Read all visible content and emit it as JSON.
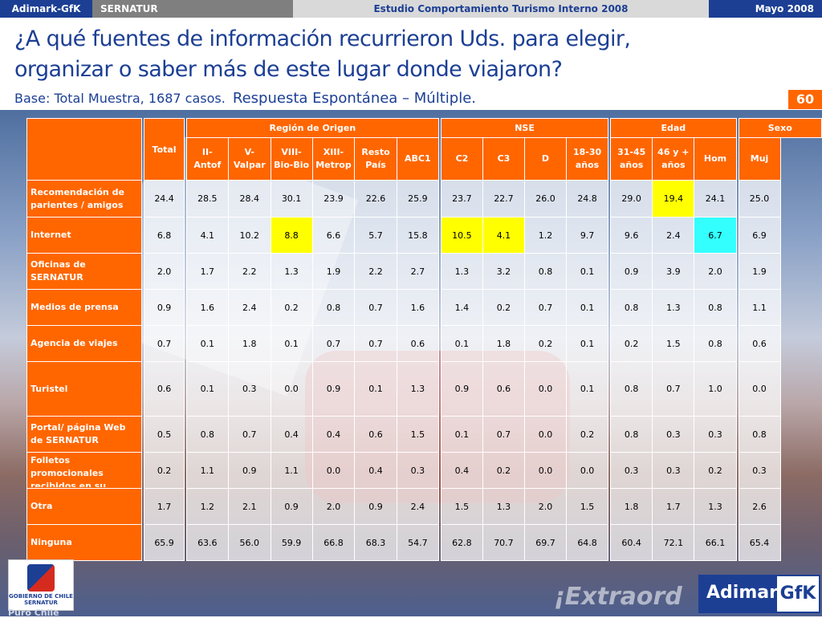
{
  "header": {
    "company": "Adimark-GfK",
    "client": "SERNATUR",
    "study": "Estudio Comportamiento Turismo Interno 2008",
    "date": "Mayo 2008"
  },
  "title": {
    "line1": "¿A qué fuentes de información recurrieron Uds. para elegir,",
    "line2": "organizar o saber más de este lugar donde viajaron?",
    "base": "Base: Total Muestra, 1687 casos.",
    "response": "Respuesta Espontánea – Múltiple.",
    "page_number": "60"
  },
  "table": {
    "total_label": "Total",
    "groups": [
      {
        "label": "Región de Origen",
        "span": 6
      },
      {
        "label": "NSE",
        "span": 4
      },
      {
        "label": "Edad",
        "span": 3
      },
      {
        "label": "Sexo",
        "span": 2
      }
    ],
    "columns": [
      [
        "II-",
        "Antof"
      ],
      [
        "V-",
        "Valpar"
      ],
      [
        "VIII-",
        "Bio-Bio"
      ],
      [
        "XIII-",
        "Metrop"
      ],
      [
        "Resto",
        "País"
      ],
      [
        "ABC1"
      ],
      [
        "C2"
      ],
      [
        "C3"
      ],
      [
        "D"
      ],
      [
        "18-30",
        "años"
      ],
      [
        "31-45",
        "años"
      ],
      [
        "46 y +",
        "años"
      ],
      [
        "Hom"
      ],
      [
        "Muj"
      ]
    ],
    "rows": [
      {
        "label": [
          "Recomendación de",
          "parientes / amigos"
        ],
        "values": [
          "24.4",
          "28.5",
          "28.4",
          "30.1",
          "23.9",
          "22.6",
          "25.9",
          "23.7",
          "22.7",
          "26.0",
          "24.8",
          "29.0",
          "19.4",
          "24.1",
          "25.0"
        ]
      },
      {
        "label": [
          "Internet"
        ],
        "values": [
          "6.8",
          "4.1",
          "10.2",
          "8.8",
          "6.6",
          "5.7",
          "15.8",
          "10.5",
          "4.1",
          "1.2",
          "9.7",
          "9.6",
          "2.4",
          "6.7",
          "6.9"
        ]
      },
      {
        "label": [
          "Oficinas de",
          "SERNATUR"
        ],
        "values": [
          "2.0",
          "1.7",
          "2.2",
          "1.3",
          "1.9",
          "2.2",
          "2.7",
          "1.3",
          "3.2",
          "0.8",
          "0.1",
          "0.9",
          "3.9",
          "2.0",
          "1.9"
        ]
      },
      {
        "label": [
          "Medios de prensa"
        ],
        "values": [
          "0.9",
          "1.6",
          "2.4",
          "0.2",
          "0.8",
          "0.7",
          "1.6",
          "1.4",
          "0.2",
          "0.7",
          "0.1",
          "0.8",
          "1.3",
          "0.8",
          "1.1"
        ]
      },
      {
        "label": [
          "Agencia de viajes"
        ],
        "values": [
          "0.7",
          "0.1",
          "1.8",
          "0.1",
          "0.7",
          "0.7",
          "0.6",
          "0.1",
          "1.8",
          "0.2",
          "0.1",
          "0.2",
          "1.5",
          "0.8",
          "0.6"
        ]
      },
      {
        "label": [
          "Turistel"
        ],
        "values": [
          "0.6",
          "0.1",
          "0.3",
          "0.0",
          "0.9",
          "0.1",
          "1.3",
          "0.9",
          "0.6",
          "0.0",
          "0.1",
          "0.8",
          "0.7",
          "1.0",
          "0.0"
        ]
      },
      {
        "label": [
          "Portal/ página Web",
          "de SERNATUR"
        ],
        "values": [
          "0.5",
          "0.8",
          "0.7",
          "0.4",
          "0.4",
          "0.6",
          "1.5",
          "0.1",
          "0.7",
          "0.0",
          "0.2",
          "0.8",
          "0.3",
          "0.3",
          "0.8"
        ]
      },
      {
        "label": [
          "Folletos",
          "promocionales",
          "recibidos en su"
        ],
        "values": [
          "0.2",
          "1.1",
          "0.9",
          "1.1",
          "0.0",
          "0.4",
          "0.3",
          "0.4",
          "0.2",
          "0.0",
          "0.0",
          "0.3",
          "0.3",
          "0.2",
          "0.3"
        ]
      },
      {
        "label": [
          "Otra"
        ],
        "values": [
          "1.7",
          "1.2",
          "2.1",
          "0.9",
          "2.0",
          "0.9",
          "2.4",
          "1.5",
          "1.3",
          "2.0",
          "1.5",
          "1.8",
          "1.7",
          "1.3",
          "2.6"
        ]
      },
      {
        "label": [
          "Ninguna"
        ],
        "values": [
          "65.9",
          "63.6",
          "56.0",
          "59.9",
          "66.8",
          "68.3",
          "54.7",
          "62.8",
          "70.7",
          "69.7",
          "64.8",
          "60.4",
          "72.1",
          "66.1",
          "65.4"
        ]
      }
    ],
    "highlights": {
      "yellow": [
        [
          0,
          11
        ],
        [
          1,
          2
        ],
        [
          1,
          6
        ],
        [
          1,
          7
        ]
      ],
      "cyan": [
        [
          1,
          12
        ]
      ]
    },
    "colors": {
      "header": "#ff6600",
      "yellow": "#ffff00",
      "cyan": "#33ffff",
      "brand": "#1c3f94"
    }
  },
  "footer": {
    "gov_logo_text": "GOBIERNO DE CHILE",
    "gov_logo_sub": "SERNATUR",
    "slogan": "Puro Chile",
    "watermark": "¡Extraord",
    "brand_a": "Adimark",
    "brand_b": "GfK"
  }
}
